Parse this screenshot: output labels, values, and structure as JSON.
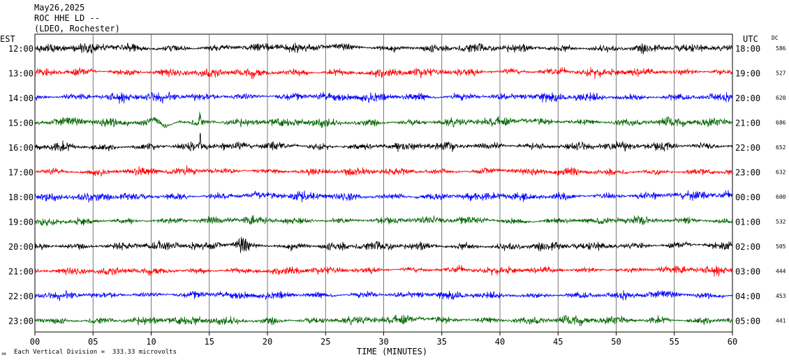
{
  "header": {
    "date": "May26,2025",
    "station": "ROC HHE LD --",
    "network": "(LDEO, Rochester)"
  },
  "left_axis_label": "EST",
  "right_axis_label": "UTC",
  "dc_header": "DC",
  "footer": {
    "scale_note": "Each Vertical Division =  333.33 microvolts",
    "corner_mark": "ᴊᴍ"
  },
  "chart_data": {
    "type": "line",
    "title": "ROC HHE LD --",
    "xlabel": "TIME (MINUTES)",
    "xlim": [
      0,
      60
    ],
    "x_ticks": [
      "00",
      "05",
      "10",
      "15",
      "20",
      "25",
      "30",
      "35",
      "40",
      "45",
      "50",
      "55",
      "60"
    ],
    "grid": true,
    "trace_colors": [
      "#000000",
      "#ff0000",
      "#0000ff",
      "#006600"
    ],
    "rows": [
      {
        "est": "12:00",
        "utc": "18:00",
        "dc": "586"
      },
      {
        "est": "13:00",
        "utc": "19:00",
        "dc": "527"
      },
      {
        "est": "14:00",
        "utc": "20:00",
        "dc": "620"
      },
      {
        "est": "15:00",
        "utc": "21:00",
        "dc": "686"
      },
      {
        "est": "16:00",
        "utc": "22:00",
        "dc": "652"
      },
      {
        "est": "17:00",
        "utc": "23:00",
        "dc": "632"
      },
      {
        "est": "18:00",
        "utc": "00:00",
        "dc": "600"
      },
      {
        "est": "19:00",
        "utc": "01:00",
        "dc": "532"
      },
      {
        "est": "20:00",
        "utc": "02:00",
        "dc": "505"
      },
      {
        "est": "21:00",
        "utc": "03:00",
        "dc": "444"
      },
      {
        "est": "22:00",
        "utc": "04:00",
        "dc": "453"
      },
      {
        "est": "23:00",
        "utc": "05:00",
        "dc": "441"
      }
    ],
    "events": [
      {
        "row": 3,
        "minute": 10.8,
        "note": "long-period swell"
      },
      {
        "row": 3,
        "minute": 14.2,
        "note": "spike"
      },
      {
        "row": 4,
        "minute": 14.2,
        "note": "spike"
      },
      {
        "row": 8,
        "minute": 17.8,
        "note": "local burst"
      }
    ]
  }
}
